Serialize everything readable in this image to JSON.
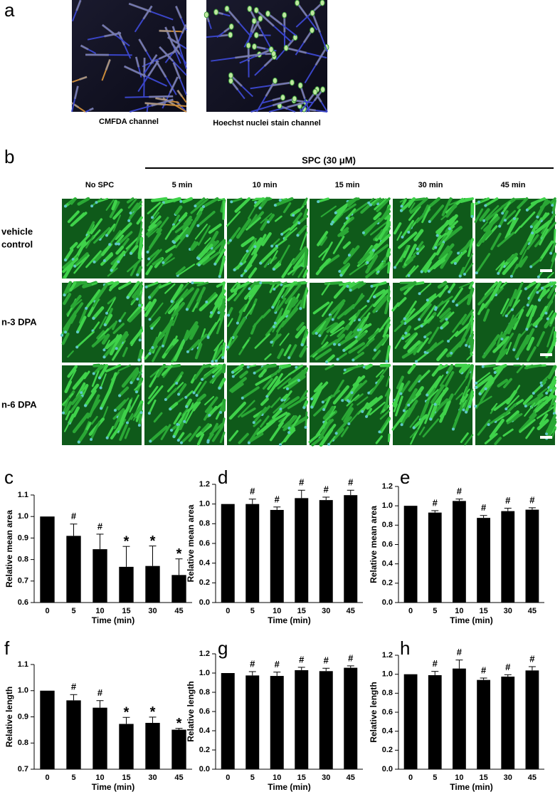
{
  "panel_letters": [
    "a",
    "b",
    "c",
    "d",
    "e",
    "f",
    "g",
    "h"
  ],
  "panel_a": {
    "captions": [
      "CMFDA channel",
      "Hoechst nuclei stain channel"
    ]
  },
  "panel_b": {
    "header": "SPC (30 μM)",
    "columns": [
      "No SPC",
      "5 min",
      "10 min",
      "15 min",
      "30 min",
      "45 min"
    ],
    "rows": [
      [
        "vehicle",
        "control"
      ],
      [
        "n-3 DPA"
      ],
      [
        "n-6 DPA"
      ]
    ]
  },
  "chart_data": [
    {
      "type": "bar",
      "ylabel": "Relative mean area",
      "xlabel": "Time (min)",
      "color": "#000000",
      "categories": [
        "0",
        "5",
        "10",
        "15",
        "30",
        "45"
      ],
      "values": [
        1.0,
        0.91,
        0.848,
        0.766,
        0.77,
        0.728
      ],
      "errors": [
        0,
        0.055,
        0.07,
        0.095,
        0.093,
        0.075
      ],
      "annotations": [
        null,
        "#",
        "#",
        "*",
        "*",
        "*"
      ],
      "ylim": [
        0.6,
        1.1
      ],
      "yticks": [
        0.6,
        0.7,
        0.8,
        0.9,
        {
          "value": 1,
          "label": "1.0"
        },
        1.1
      ]
    },
    {
      "type": "bar",
      "ylabel": "Relative mean area",
      "xlabel": "Time (min)",
      "color": "#000000",
      "categories": [
        "0",
        "5",
        "10",
        "15",
        "30",
        "45"
      ],
      "values": [
        1.0,
        1.0,
        0.94,
        1.06,
        1.04,
        1.09
      ],
      "errors": [
        0,
        0.05,
        0.03,
        0.08,
        0.03,
        0.05
      ],
      "annotations": [
        null,
        "#",
        "#",
        "#",
        "#",
        "#"
      ],
      "ylim": [
        0,
        1.2
      ],
      "yticks": [
        {
          "value": 0,
          "label": "0.0"
        },
        0.2,
        0.4,
        0.6,
        0.8,
        {
          "value": 1,
          "label": "1.0"
        },
        1.2
      ]
    },
    {
      "type": "bar",
      "ylabel": "Relative mean area",
      "xlabel": "Time (min)",
      "color": "#000000",
      "categories": [
        "0",
        "5",
        "10",
        "15",
        "30",
        "45"
      ],
      "values": [
        1.0,
        0.93,
        1.05,
        0.875,
        0.945,
        0.96
      ],
      "errors": [
        0,
        0.02,
        0.02,
        0.025,
        0.03,
        0.02
      ],
      "annotations": [
        null,
        "#",
        "#",
        "#",
        "#",
        "#"
      ],
      "ylim": [
        0,
        1.2
      ],
      "yticks": [
        {
          "value": 0,
          "label": "0.0"
        },
        0.2,
        0.4,
        0.6,
        0.8,
        {
          "value": 1,
          "label": "1.0"
        },
        1.2
      ]
    },
    {
      "type": "bar",
      "ylabel": "Relative length",
      "xlabel": "Time (min)",
      "color": "#000000",
      "categories": [
        "0",
        "5",
        "10",
        "15",
        "30",
        "45"
      ],
      "values": [
        1.0,
        0.963,
        0.935,
        0.873,
        0.877,
        0.851
      ],
      "errors": [
        0,
        0.022,
        0.027,
        0.025,
        0.022,
        0.005
      ],
      "annotations": [
        null,
        "#",
        "#",
        "*",
        "*",
        "*"
      ],
      "ylim": [
        0.7,
        1.1
      ],
      "yticks": [
        0.7,
        0.8,
        0.9,
        {
          "value": 1,
          "label": "1.0"
        },
        1.1
      ]
    },
    {
      "type": "bar",
      "ylabel": "Relative length",
      "xlabel": "Time (min)",
      "color": "#000000",
      "categories": [
        "0",
        "5",
        "10",
        "15",
        "30",
        "45"
      ],
      "values": [
        1.0,
        0.975,
        0.97,
        1.03,
        1.02,
        1.055
      ],
      "errors": [
        0,
        0.04,
        0.04,
        0.03,
        0.03,
        0.02
      ],
      "annotations": [
        null,
        "#",
        "#",
        "#",
        "#",
        "#"
      ],
      "ylim": [
        0,
        1.2
      ],
      "yticks": [
        {
          "value": 0,
          "label": "0.0"
        },
        0.2,
        0.4,
        0.6,
        0.8,
        {
          "value": 1,
          "label": "1.0"
        },
        1.2
      ]
    },
    {
      "type": "bar",
      "ylabel": "Relative length",
      "xlabel": "Time (min)",
      "color": "#000000",
      "categories": [
        "0",
        "5",
        "10",
        "15",
        "30",
        "45"
      ],
      "values": [
        1.0,
        0.99,
        1.06,
        0.94,
        0.975,
        1.04
      ],
      "errors": [
        0,
        0.04,
        0.09,
        0.02,
        0.02,
        0.04
      ],
      "annotations": [
        null,
        "#",
        "#",
        "#",
        "#",
        "#"
      ],
      "ylim": [
        0,
        1.2
      ],
      "yticks": [
        {
          "value": 0,
          "label": "0.0"
        },
        0.2,
        0.4,
        0.6,
        0.8,
        {
          "value": 1,
          "label": "1.0"
        },
        1.2
      ]
    }
  ]
}
